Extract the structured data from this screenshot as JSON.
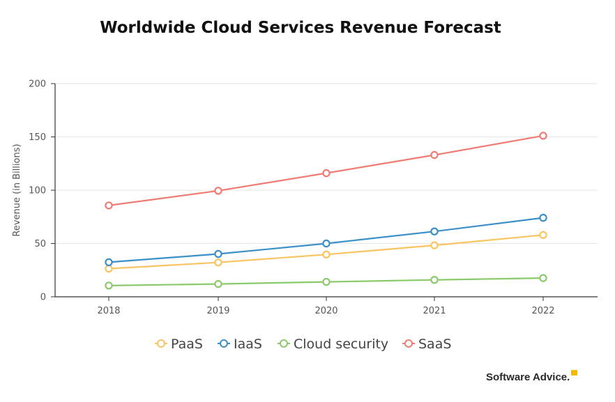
{
  "chart_data": {
    "type": "line",
    "title": "Worldwide Cloud Services Revenue Forecast",
    "xlabel": "",
    "ylabel": "Revenue (in Billions)",
    "ylim": [
      0,
      200
    ],
    "yticks": [
      0,
      50,
      100,
      150,
      200
    ],
    "x": [
      "2018",
      "2019",
      "2020",
      "2021",
      "2022"
    ],
    "grid": "horizontal",
    "legend": "bottom",
    "series": [
      {
        "name": "PaaS",
        "color": "#f9c460",
        "values": [
          26.4,
          32.2,
          39.7,
          48.3,
          58.0
        ]
      },
      {
        "name": "IaaS",
        "color": "#3a8fc9",
        "values": [
          32.4,
          40.2,
          50.0,
          61.3,
          74.1
        ]
      },
      {
        "name": "Cloud security",
        "color": "#8bc96a",
        "values": [
          10.5,
          12.0,
          14.0,
          15.9,
          17.6
        ]
      },
      {
        "name": "SaaS",
        "color": "#ef7b73",
        "values": [
          85.7,
          99.5,
          116.0,
          133.0,
          151.1
        ]
      }
    ]
  },
  "brand": {
    "text": "Software Advice.",
    "mark_color": "#f5b800"
  }
}
